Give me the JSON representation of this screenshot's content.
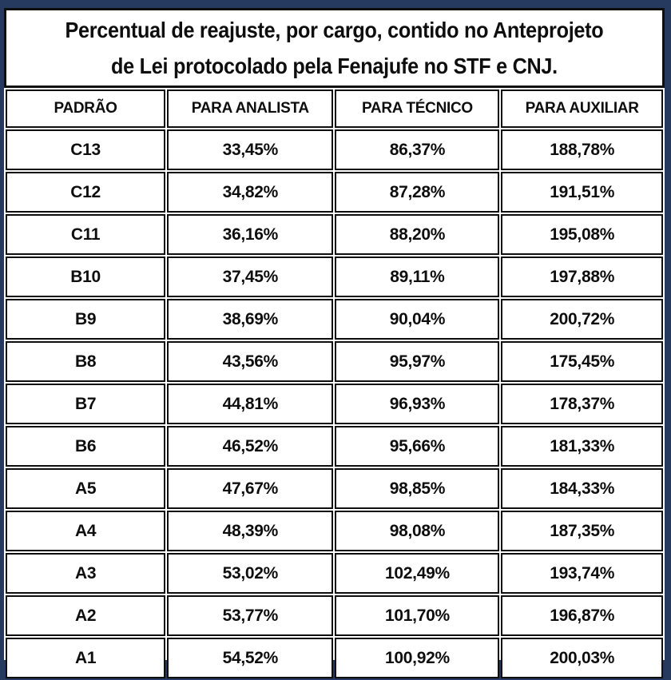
{
  "frame": {
    "background_color": "#253a5e",
    "border_color": "#0e0e0e",
    "text_color": "#0e0e0e"
  },
  "title": {
    "line1": "Percentual de reajuste, por cargo, contido no Anteprojeto",
    "line2": "de Lei protocolado pela Fenajufe no STF e CNJ."
  },
  "chart_data": {
    "type": "table",
    "title": "Percentual de reajuste, por cargo, contido no Anteprojeto de Lei protocolado pela Fenajufe no STF e CNJ.",
    "columns": [
      "PADRÃO",
      "PARA ANALISTA",
      "PARA TÉCNICO",
      "PARA AUXILIAR"
    ],
    "rows": [
      [
        "C13",
        "33,45%",
        "86,37%",
        "188,78%"
      ],
      [
        "C12",
        "34,82%",
        "87,28%",
        "191,51%"
      ],
      [
        "C11",
        "36,16%",
        "88,20%",
        "195,08%"
      ],
      [
        "B10",
        "37,45%",
        "89,11%",
        "197,88%"
      ],
      [
        "B9",
        "38,69%",
        "90,04%",
        "200,72%"
      ],
      [
        "B8",
        "43,56%",
        "95,97%",
        "175,45%"
      ],
      [
        "B7",
        "44,81%",
        "96,93%",
        "178,37%"
      ],
      [
        "B6",
        "46,52%",
        "95,66%",
        "181,33%"
      ],
      [
        "A5",
        "47,67%",
        "98,85%",
        "184,33%"
      ],
      [
        "A4",
        "48,39%",
        "98,08%",
        "187,35%"
      ],
      [
        "A3",
        "53,02%",
        "102,49%",
        "193,74%"
      ],
      [
        "A2",
        "53,77%",
        "101,70%",
        "196,87%"
      ],
      [
        "A1",
        "54,52%",
        "100,92%",
        "200,03%"
      ]
    ],
    "values_numeric_pt_BR_percent": {
      "PARA ANALISTA": [
        33.45,
        34.82,
        36.16,
        37.45,
        38.69,
        43.56,
        44.81,
        46.52,
        47.67,
        48.39,
        53.02,
        53.77,
        54.52
      ],
      "PARA TÉCNICO": [
        86.37,
        87.28,
        88.2,
        89.11,
        90.04,
        95.97,
        96.93,
        95.66,
        98.85,
        98.08,
        102.49,
        101.7,
        100.92
      ],
      "PARA AUXILIAR": [
        188.78,
        191.51,
        195.08,
        197.88,
        200.72,
        175.45,
        178.37,
        181.33,
        184.33,
        187.35,
        193.74,
        196.87,
        200.03
      ]
    }
  }
}
